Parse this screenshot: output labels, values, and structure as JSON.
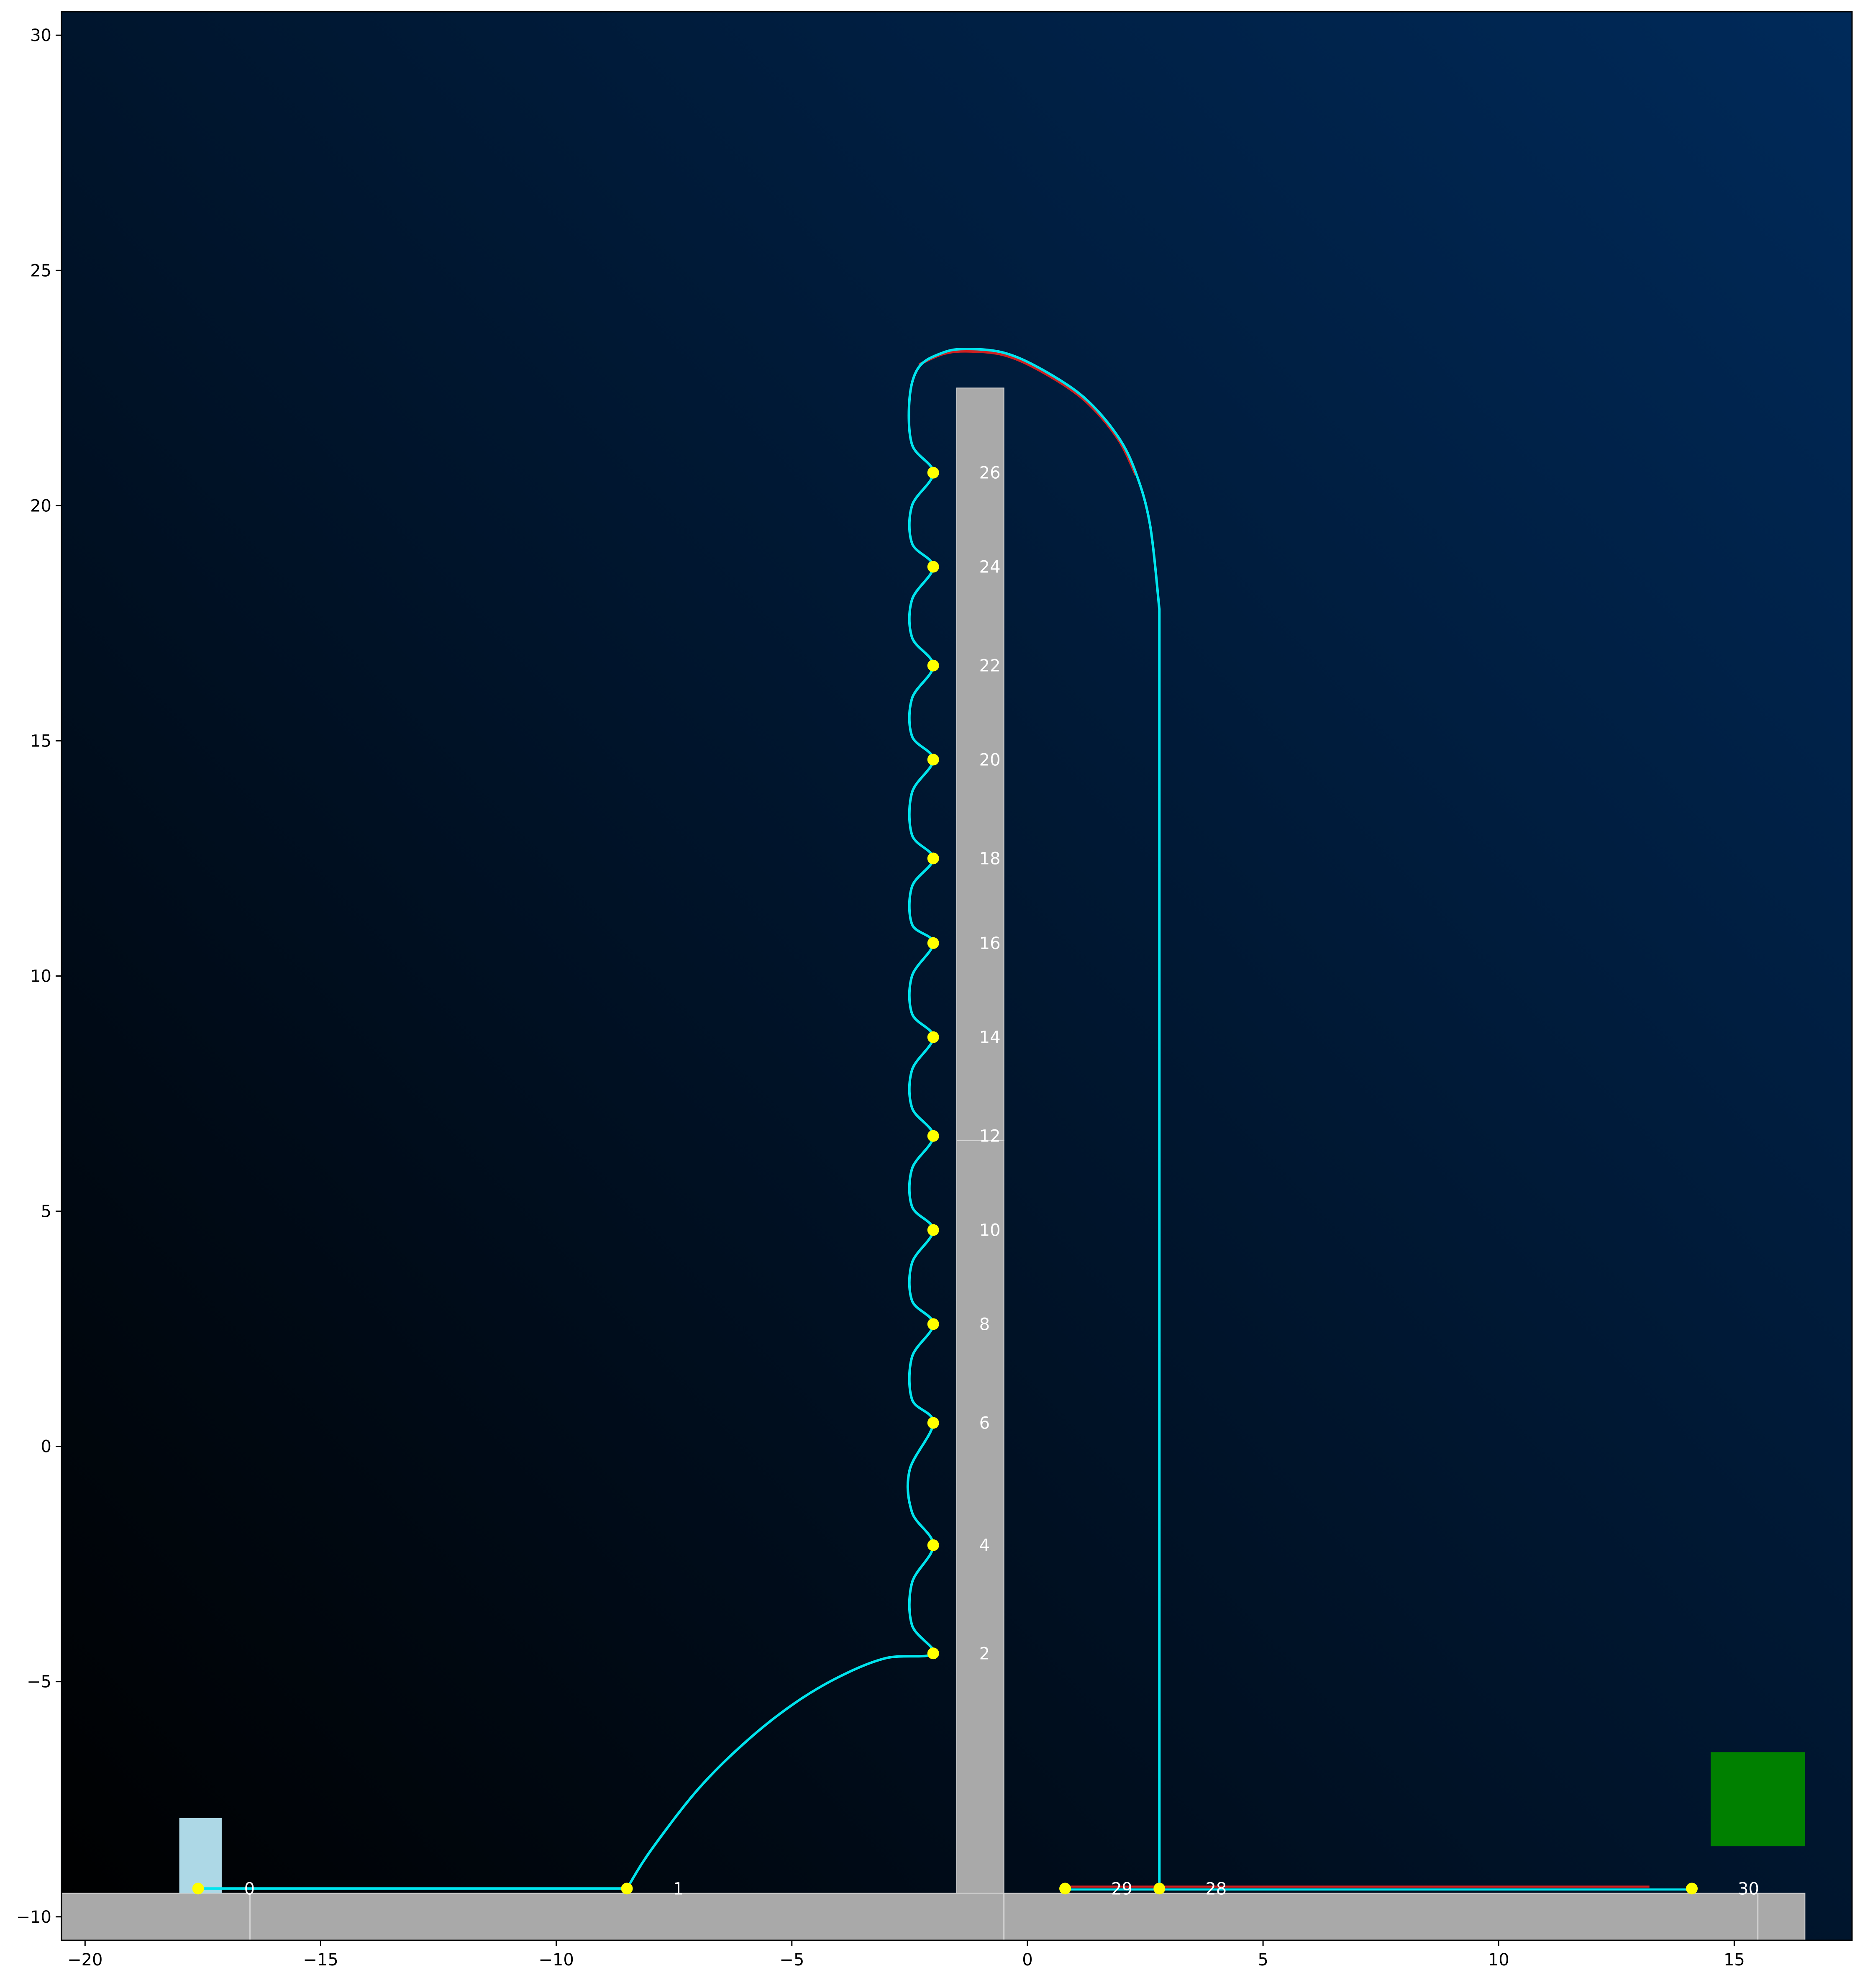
{
  "chart_data": {
    "type": "scatter",
    "title": "",
    "xlabel": "",
    "ylabel": "",
    "xlim": [
      -20.5,
      17.5
    ],
    "ylim": [
      -10.5,
      30.5
    ],
    "xticks": [
      -20,
      -15,
      -10,
      -5,
      0,
      5,
      10,
      15
    ],
    "yticks": [
      -10,
      -5,
      0,
      5,
      10,
      15,
      20,
      25,
      30
    ],
    "grid": false,
    "legend": "none",
    "background": {
      "from": "#000000",
      "to": "#002a5a"
    },
    "colors": {
      "platform": "#a9a9a9",
      "platform_edge": "#d3d3d3",
      "start_block": "#add8e6",
      "goal_block": "#008000",
      "path": "#00e5ee",
      "reference_path": "#d02020",
      "waypoint": "#ffff00",
      "label": "#ffffff"
    },
    "platforms": [
      {
        "x0": -20.5,
        "x1": 16.5,
        "y0": -10.5,
        "y1": -9.5
      },
      {
        "x0": -1.5,
        "x1": -0.5,
        "y0": -9.5,
        "y1": 6.5
      },
      {
        "x0": -1.5,
        "x1": -0.5,
        "y0": 6.5,
        "y1": 22.5
      }
    ],
    "floor_seams": [
      -16.5,
      -0.5,
      15.5
    ],
    "start_block": {
      "x0": -18.0,
      "x1": -17.1,
      "y0": -9.5,
      "y1": -7.9
    },
    "goal_block": {
      "x0": 14.5,
      "x1": 16.5,
      "y0": -8.5,
      "y1": -6.5
    },
    "waypoints": [
      {
        "label": "0",
        "x": -17.6,
        "y": -9.4
      },
      {
        "label": "1",
        "x": -8.5,
        "y": -9.4
      },
      {
        "label": "2",
        "x": -2.0,
        "y": -4.4
      },
      {
        "label": "4",
        "x": -2.0,
        "y": -2.1
      },
      {
        "label": "6",
        "x": -2.0,
        "y": 0.5
      },
      {
        "label": "8",
        "x": -2.0,
        "y": 2.6
      },
      {
        "label": "10",
        "x": -2.0,
        "y": 4.6
      },
      {
        "label": "12",
        "x": -2.0,
        "y": 6.6
      },
      {
        "label": "14",
        "x": -2.0,
        "y": 8.7
      },
      {
        "label": "16",
        "x": -2.0,
        "y": 10.7
      },
      {
        "label": "18",
        "x": -2.0,
        "y": 12.5
      },
      {
        "label": "20",
        "x": -2.0,
        "y": 14.6
      },
      {
        "label": "22",
        "x": -2.0,
        "y": 16.6
      },
      {
        "label": "24",
        "x": -2.0,
        "y": 18.7
      },
      {
        "label": "26",
        "x": -2.0,
        "y": 20.7
      },
      {
        "label": "28",
        "x": 2.8,
        "y": -9.4
      },
      {
        "label": "29",
        "x": 0.8,
        "y": -9.4
      },
      {
        "label": "30",
        "x": 14.1,
        "y": -9.4
      }
    ],
    "path": [
      [
        -17.6,
        -9.4
      ],
      [
        -8.5,
        -9.4
      ],
      [
        -8.0,
        -8.6
      ],
      [
        -7.0,
        -7.3
      ],
      [
        -6.0,
        -6.3
      ],
      [
        -5.0,
        -5.5
      ],
      [
        -4.0,
        -4.9
      ],
      [
        -3.0,
        -4.5
      ],
      [
        -2.0,
        -4.4
      ],
      [
        -2.45,
        -3.8
      ],
      [
        -2.45,
        -2.9
      ],
      [
        -2.0,
        -2.1
      ],
      [
        -2.45,
        -1.4
      ],
      [
        -2.5,
        -0.5
      ],
      [
        -2.0,
        0.5
      ],
      [
        -2.45,
        1.0
      ],
      [
        -2.45,
        1.9
      ],
      [
        -2.0,
        2.6
      ],
      [
        -2.45,
        3.1
      ],
      [
        -2.45,
        3.9
      ],
      [
        -2.0,
        4.6
      ],
      [
        -2.45,
        5.1
      ],
      [
        -2.45,
        5.9
      ],
      [
        -2.0,
        6.6
      ],
      [
        -2.45,
        7.2
      ],
      [
        -2.45,
        8.0
      ],
      [
        -2.0,
        8.7
      ],
      [
        -2.45,
        9.2
      ],
      [
        -2.45,
        10.0
      ],
      [
        -2.0,
        10.7
      ],
      [
        -2.45,
        11.1
      ],
      [
        -2.45,
        11.9
      ],
      [
        -2.0,
        12.5
      ],
      [
        -2.45,
        13.0
      ],
      [
        -2.45,
        13.9
      ],
      [
        -2.0,
        14.6
      ],
      [
        -2.45,
        15.1
      ],
      [
        -2.45,
        15.9
      ],
      [
        -2.0,
        16.6
      ],
      [
        -2.45,
        17.2
      ],
      [
        -2.45,
        18.0
      ],
      [
        -2.0,
        18.7
      ],
      [
        -2.45,
        19.2
      ],
      [
        -2.45,
        20.0
      ],
      [
        -2.0,
        20.7
      ],
      [
        -2.45,
        21.3
      ],
      [
        -2.5,
        22.3
      ],
      [
        -2.3,
        22.95
      ],
      [
        -1.8,
        23.25
      ],
      [
        -1.3,
        23.33
      ],
      [
        -0.5,
        23.25
      ],
      [
        0.3,
        22.9
      ],
      [
        1.2,
        22.3
      ],
      [
        1.9,
        21.5
      ],
      [
        2.3,
        20.7
      ],
      [
        2.6,
        19.6
      ],
      [
        2.8,
        17.8
      ],
      [
        2.8,
        -9.4
      ]
    ],
    "reference_path": [
      [
        -2.3,
        23.0
      ],
      [
        -1.8,
        23.22
      ],
      [
        -1.3,
        23.28
      ],
      [
        -0.5,
        23.2
      ],
      [
        0.3,
        22.85
      ],
      [
        1.2,
        22.25
      ],
      [
        1.9,
        21.45
      ],
      [
        2.3,
        20.65
      ]
    ],
    "floor_path": [
      [
        0.8,
        -9.42
      ],
      [
        14.1,
        -9.42
      ]
    ],
    "floor_reference": [
      [
        0.8,
        -9.36
      ],
      [
        13.2,
        -9.36
      ]
    ]
  }
}
